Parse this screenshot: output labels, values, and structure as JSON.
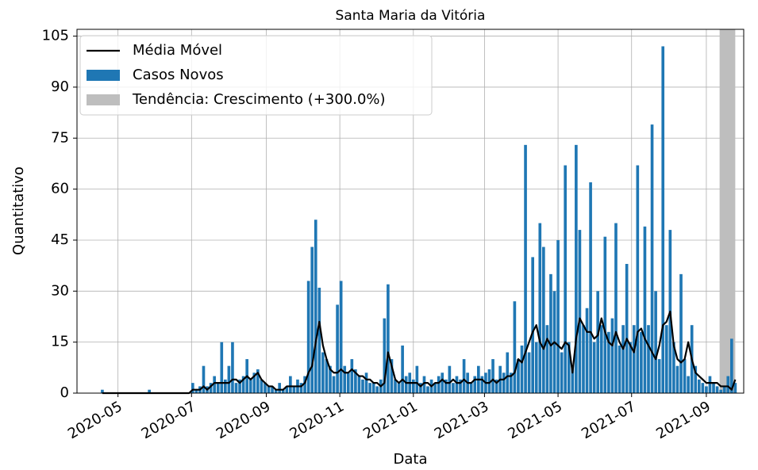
{
  "chart_data": {
    "type": "bar",
    "title": "Santa Maria da Vitória",
    "xlabel": "Data",
    "ylabel": "Quantitativo",
    "x": [
      18355,
      18358,
      18361,
      18364,
      18367,
      18370,
      18373,
      18376,
      18379,
      18382,
      18385,
      18388,
      18391,
      18394,
      18397,
      18400,
      18403,
      18406,
      18409,
      18412,
      18415,
      18418,
      18421,
      18424,
      18427,
      18430,
      18433,
      18436,
      18439,
      18442,
      18445,
      18448,
      18451,
      18454,
      18457,
      18460,
      18463,
      18466,
      18469,
      18472,
      18475,
      18478,
      18481,
      18484,
      18487,
      18490,
      18493,
      18496,
      18499,
      18502,
      18505,
      18508,
      18511,
      18514,
      18517,
      18520,
      18523,
      18526,
      18529,
      18532,
      18535,
      18538,
      18541,
      18544,
      18547,
      18550,
      18553,
      18556,
      18559,
      18562,
      18565,
      18568,
      18571,
      18574,
      18577,
      18580,
      18583,
      18586,
      18589,
      18592,
      18595,
      18598,
      18601,
      18604,
      18607,
      18610,
      18613,
      18616,
      18619,
      18622,
      18625,
      18628,
      18631,
      18634,
      18637,
      18640,
      18643,
      18646,
      18649,
      18652,
      18655,
      18658,
      18661,
      18664,
      18667,
      18670,
      18673,
      18676,
      18679,
      18682,
      18685,
      18688,
      18691,
      18694,
      18697,
      18700,
      18703,
      18706,
      18709,
      18712,
      18715,
      18718,
      18721,
      18724,
      18727,
      18730,
      18733,
      18736,
      18739,
      18742,
      18745,
      18748,
      18751,
      18754,
      18757,
      18760,
      18763,
      18766,
      18769,
      18772,
      18775,
      18778,
      18781,
      18784,
      18787,
      18790,
      18793,
      18796,
      18799,
      18802,
      18805,
      18808,
      18811,
      18814,
      18817,
      18820,
      18823,
      18826,
      18829,
      18832,
      18835,
      18838,
      18841,
      18844,
      18847,
      18850,
      18853,
      18856,
      18859,
      18862,
      18865,
      18868,
      18871,
      18874,
      18877,
      18880,
      18883,
      18886,
      18889,
      18892,
      18895
    ],
    "series": [
      {
        "name": "Média Móvel",
        "color": "#000000",
        "kind": "line",
        "values": [
          null,
          null,
          null,
          null,
          null,
          0,
          0,
          0,
          0,
          0,
          0,
          0,
          0,
          0,
          0,
          0,
          0,
          0,
          0,
          0,
          0,
          0,
          0,
          0,
          0,
          0,
          0,
          0,
          0,
          0,
          1,
          1,
          1,
          2,
          1,
          2,
          3,
          3,
          3,
          3,
          3,
          4,
          4,
          3,
          4,
          5,
          4,
          5,
          6,
          4,
          3,
          2,
          2,
          1,
          1,
          1,
          2,
          2,
          2,
          2,
          2,
          3,
          6,
          8,
          15,
          21,
          14,
          10,
          7,
          6,
          6,
          7,
          6,
          6,
          7,
          6,
          5,
          5,
          4,
          4,
          3,
          3,
          2,
          3,
          12,
          8,
          4,
          3,
          4,
          3,
          3,
          3,
          3,
          2,
          3,
          3,
          2,
          3,
          3,
          4,
          3,
          3,
          4,
          3,
          3,
          4,
          3,
          3,
          4,
          4,
          4,
          3,
          3,
          4,
          3,
          4,
          4,
          5,
          5,
          6,
          10,
          9,
          12,
          15,
          18,
          20,
          15,
          13,
          16,
          14,
          15,
          14,
          13,
          15,
          14,
          6,
          16,
          22,
          20,
          18,
          18,
          16,
          17,
          22,
          18,
          15,
          14,
          18,
          15,
          13,
          16,
          14,
          12,
          18,
          19,
          16,
          14,
          12,
          10,
          14,
          20,
          21,
          24,
          14,
          10,
          9,
          10,
          15,
          10,
          6,
          5,
          4,
          3,
          3,
          3,
          3,
          2,
          2,
          2,
          1,
          4
        ]
      },
      {
        "name": "Casos Novos",
        "color": "#1f77b4",
        "kind": "bar",
        "values": [
          0,
          0,
          0,
          0,
          0,
          1,
          0,
          0,
          0,
          0,
          0,
          0,
          0,
          0,
          0,
          0,
          0,
          0,
          1,
          0,
          0,
          0,
          0,
          0,
          0,
          0,
          0,
          0,
          0,
          0,
          3,
          1,
          2,
          8,
          2,
          3,
          5,
          3,
          15,
          4,
          8,
          15,
          3,
          4,
          5,
          10,
          4,
          6,
          7,
          4,
          3,
          2,
          2,
          1,
          3,
          1,
          2,
          5,
          2,
          4,
          3,
          5,
          33,
          43,
          51,
          31,
          12,
          10,
          8,
          5,
          26,
          33,
          8,
          6,
          10,
          7,
          5,
          4,
          6,
          3,
          3,
          2,
          4,
          22,
          32,
          10,
          4,
          3,
          14,
          5,
          6,
          4,
          8,
          3,
          5,
          2,
          4,
          3,
          5,
          6,
          4,
          8,
          3,
          5,
          4,
          10,
          6,
          3,
          5,
          8,
          5,
          6,
          7,
          10,
          4,
          8,
          6,
          12,
          6,
          27,
          10,
          14,
          73,
          12,
          40,
          15,
          50,
          43,
          20,
          35,
          30,
          45,
          12,
          67,
          15,
          8,
          73,
          48,
          20,
          25,
          62,
          15,
          30,
          20,
          46,
          18,
          22,
          50,
          14,
          20,
          38,
          15,
          20,
          67,
          18,
          49,
          20,
          79,
          30,
          10,
          102,
          20,
          48,
          15,
          8,
          35,
          10,
          5,
          20,
          8,
          4,
          3,
          2,
          5,
          3,
          2,
          1,
          2,
          5,
          16,
          3
        ]
      }
    ],
    "span": {
      "name": "Tendência: Crescimento (+300.0%)",
      "color": "#bebebe",
      "x": [
        18882,
        18895
      ]
    },
    "xlim": [
      18349,
      18902
    ],
    "xticks": [
      {
        "value": 18383,
        "label": "2020-05"
      },
      {
        "value": 18444,
        "label": "2020-07"
      },
      {
        "value": 18506,
        "label": "2020-09"
      },
      {
        "value": 18567,
        "label": "2020-11"
      },
      {
        "value": 18628,
        "label": "2021-01"
      },
      {
        "value": 18687,
        "label": "2021-03"
      },
      {
        "value": 18748,
        "label": "2021-05"
      },
      {
        "value": 18809,
        "label": "2021-07"
      },
      {
        "value": 18871,
        "label": "2021-09"
      }
    ],
    "ylim": [
      0,
      107
    ],
    "yticks": [
      0,
      15,
      30,
      45,
      60,
      75,
      90,
      105
    ],
    "grid": true,
    "legend": "upper left"
  }
}
